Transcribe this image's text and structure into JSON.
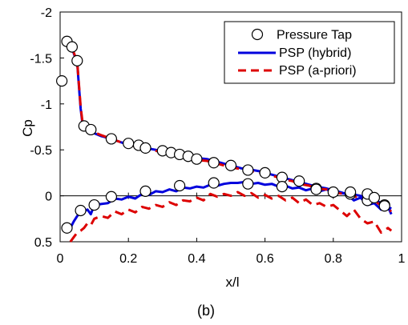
{
  "chart_data": {
    "type": "line",
    "xlabel": "x/l",
    "ylabel": "Cp",
    "caption": "(b)",
    "xlim": [
      0,
      1
    ],
    "ylim": [
      0.5,
      -2
    ],
    "y_axis_inverted": true,
    "x_ticks": [
      0,
      0.2,
      0.4,
      0.6,
      0.8,
      1
    ],
    "y_ticks": [
      -2,
      -1.5,
      -1,
      -0.5,
      0,
      0.5
    ],
    "x_tick_labels": [
      "0",
      "0.2",
      "0.4",
      "0.6",
      "0.8",
      "1"
    ],
    "y_tick_labels": [
      "-2",
      "-1.5",
      "-1",
      "-0.5",
      "0",
      "0.5"
    ],
    "grid": false,
    "zero_line": true,
    "legend_position": "top-right",
    "legend": [
      "Pressure Tap",
      "PSP (hybrid)",
      "PSP (a-priori)"
    ],
    "colors": {
      "pressure_tap": "#000000",
      "hybrid": "#0000dd",
      "apriori": "#dd0000"
    },
    "series": [
      {
        "name": "Pressure Tap",
        "style": "open-circle-markers",
        "x": [
          0.005,
          0.02,
          0.035,
          0.05,
          0.07,
          0.09,
          0.15,
          0.2,
          0.23,
          0.25,
          0.3,
          0.325,
          0.35,
          0.375,
          0.4,
          0.45,
          0.5,
          0.55,
          0.6,
          0.65,
          0.7,
          0.75,
          0.8,
          0.85,
          0.9,
          0.95,
          0.02,
          0.06,
          0.1,
          0.15,
          0.25,
          0.35,
          0.45,
          0.55,
          0.65,
          0.75,
          0.85,
          0.9,
          0.92,
          0.95
        ],
        "y": [
          -1.25,
          -1.68,
          -1.62,
          -1.47,
          -0.76,
          -0.72,
          -0.62,
          -0.57,
          -0.55,
          -0.52,
          -0.49,
          -0.47,
          -0.45,
          -0.43,
          -0.4,
          -0.36,
          -0.33,
          -0.28,
          -0.25,
          -0.2,
          -0.16,
          -0.08,
          -0.04,
          -0.02,
          0.05,
          0.1,
          0.35,
          0.16,
          0.1,
          0.01,
          -0.05,
          -0.11,
          -0.14,
          -0.13,
          -0.1,
          -0.07,
          -0.04,
          -0.02,
          0.02,
          0.11
        ]
      },
      {
        "name": "PSP (hybrid)",
        "style": "solid",
        "segments": [
          {
            "x": [
              0.02,
              0.025,
              0.03,
              0.035,
              0.04,
              0.05,
              0.055,
              0.06,
              0.065,
              0.07,
              0.08,
              0.09,
              0.1,
              0.12,
              0.15,
              0.18,
              0.2,
              0.23,
              0.25,
              0.28,
              0.3,
              0.33,
              0.35,
              0.38,
              0.4,
              0.43,
              0.45,
              0.48,
              0.5,
              0.53,
              0.55,
              0.58,
              0.6,
              0.63,
              0.65,
              0.68,
              0.7,
              0.73,
              0.75,
              0.78,
              0.8,
              0.83,
              0.85,
              0.88,
              0.9,
              0.93,
              0.95,
              0.97
            ],
            "y": [
              -1.7,
              -1.69,
              -1.67,
              -1.62,
              -1.55,
              -1.45,
              -1.2,
              -0.95,
              -0.8,
              -0.75,
              -0.73,
              -0.7,
              -0.68,
              -0.65,
              -0.62,
              -0.58,
              -0.56,
              -0.54,
              -0.52,
              -0.5,
              -0.48,
              -0.47,
              -0.45,
              -0.43,
              -0.41,
              -0.4,
              -0.38,
              -0.35,
              -0.33,
              -0.3,
              -0.29,
              -0.27,
              -0.25,
              -0.22,
              -0.2,
              -0.17,
              -0.15,
              -0.12,
              -0.1,
              -0.08,
              -0.06,
              -0.03,
              -0.02,
              0.0,
              0.03,
              0.06,
              0.1,
              0.14
            ]
          },
          {
            "x": [
              0.03,
              0.04,
              0.05,
              0.06,
              0.07,
              0.08,
              0.09,
              0.1,
              0.12,
              0.14,
              0.16,
              0.18,
              0.2,
              0.22,
              0.24,
              0.26,
              0.28,
              0.3,
              0.32,
              0.34,
              0.36,
              0.38,
              0.4,
              0.42,
              0.44,
              0.46,
              0.48,
              0.5,
              0.52,
              0.54,
              0.56,
              0.58,
              0.6,
              0.62,
              0.64,
              0.66,
              0.68,
              0.7,
              0.72,
              0.74,
              0.76,
              0.78,
              0.8,
              0.82,
              0.84,
              0.86,
              0.88,
              0.9,
              0.92,
              0.94,
              0.96,
              0.97
            ],
            "y": [
              0.35,
              0.28,
              0.22,
              0.18,
              0.17,
              0.15,
              0.2,
              0.1,
              0.09,
              0.08,
              0.03,
              0.04,
              0.01,
              0.03,
              -0.02,
              -0.01,
              -0.05,
              -0.04,
              -0.07,
              -0.05,
              -0.09,
              -0.08,
              -0.1,
              -0.09,
              -0.12,
              -0.11,
              -0.13,
              -0.14,
              -0.14,
              -0.15,
              -0.13,
              -0.14,
              -0.12,
              -0.13,
              -0.1,
              -0.11,
              -0.08,
              -0.09,
              -0.06,
              -0.08,
              -0.05,
              -0.07,
              -0.04,
              -0.03,
              -0.02,
              0.05,
              0.02,
              0.1,
              0.08,
              0.15,
              0.12,
              0.2
            ]
          }
        ]
      },
      {
        "name": "PSP (a-priori)",
        "style": "dashed",
        "segments": [
          {
            "x": [
              0.02,
              0.025,
              0.03,
              0.035,
              0.04,
              0.05,
              0.055,
              0.06,
              0.065,
              0.07,
              0.08,
              0.09,
              0.1,
              0.12,
              0.15,
              0.18,
              0.2,
              0.23,
              0.25,
              0.28,
              0.3,
              0.33,
              0.35,
              0.38,
              0.4,
              0.43,
              0.45,
              0.48,
              0.5,
              0.53,
              0.55,
              0.58,
              0.6,
              0.63,
              0.65,
              0.68,
              0.7,
              0.73,
              0.75,
              0.78,
              0.8,
              0.83,
              0.85,
              0.88,
              0.9,
              0.93,
              0.95,
              0.97
            ],
            "y": [
              -1.72,
              -1.7,
              -1.68,
              -1.63,
              -1.56,
              -1.46,
              -1.22,
              -0.97,
              -0.82,
              -0.76,
              -0.73,
              -0.71,
              -0.69,
              -0.66,
              -0.62,
              -0.58,
              -0.56,
              -0.53,
              -0.51,
              -0.49,
              -0.47,
              -0.45,
              -0.42,
              -0.41,
              -0.39,
              -0.38,
              -0.36,
              -0.33,
              -0.31,
              -0.29,
              -0.27,
              -0.26,
              -0.23,
              -0.21,
              -0.18,
              -0.16,
              -0.13,
              -0.11,
              -0.08,
              -0.07,
              -0.04,
              -0.02,
              0.0,
              0.02,
              0.05,
              0.08,
              0.12,
              0.17
            ]
          },
          {
            "x": [
              0.03,
              0.04,
              0.05,
              0.06,
              0.07,
              0.08,
              0.09,
              0.1,
              0.12,
              0.14,
              0.16,
              0.18,
              0.2,
              0.22,
              0.24,
              0.26,
              0.28,
              0.3,
              0.32,
              0.34,
              0.36,
              0.38,
              0.4,
              0.42,
              0.44,
              0.46,
              0.48,
              0.5,
              0.52,
              0.54,
              0.56,
              0.58,
              0.6,
              0.62,
              0.64,
              0.66,
              0.68,
              0.7,
              0.72,
              0.74,
              0.76,
              0.78,
              0.8,
              0.82,
              0.84,
              0.86,
              0.88,
              0.9,
              0.92,
              0.94,
              0.96,
              0.97
            ],
            "y": [
              0.5,
              0.45,
              0.4,
              0.38,
              0.35,
              0.3,
              0.32,
              0.25,
              0.22,
              0.24,
              0.17,
              0.2,
              0.15,
              0.18,
              0.12,
              0.14,
              0.1,
              0.12,
              0.07,
              0.1,
              0.05,
              0.06,
              0.02,
              0.05,
              -0.02,
              0.01,
              -0.02,
              0.0,
              -0.04,
              0.0,
              -0.03,
              0.02,
              -0.01,
              0.03,
              0.0,
              0.05,
              0.02,
              0.08,
              0.04,
              0.1,
              0.08,
              0.12,
              0.1,
              0.16,
              0.22,
              0.15,
              0.25,
              0.3,
              0.28,
              0.4,
              0.35,
              0.38
            ]
          }
        ]
      }
    ]
  }
}
